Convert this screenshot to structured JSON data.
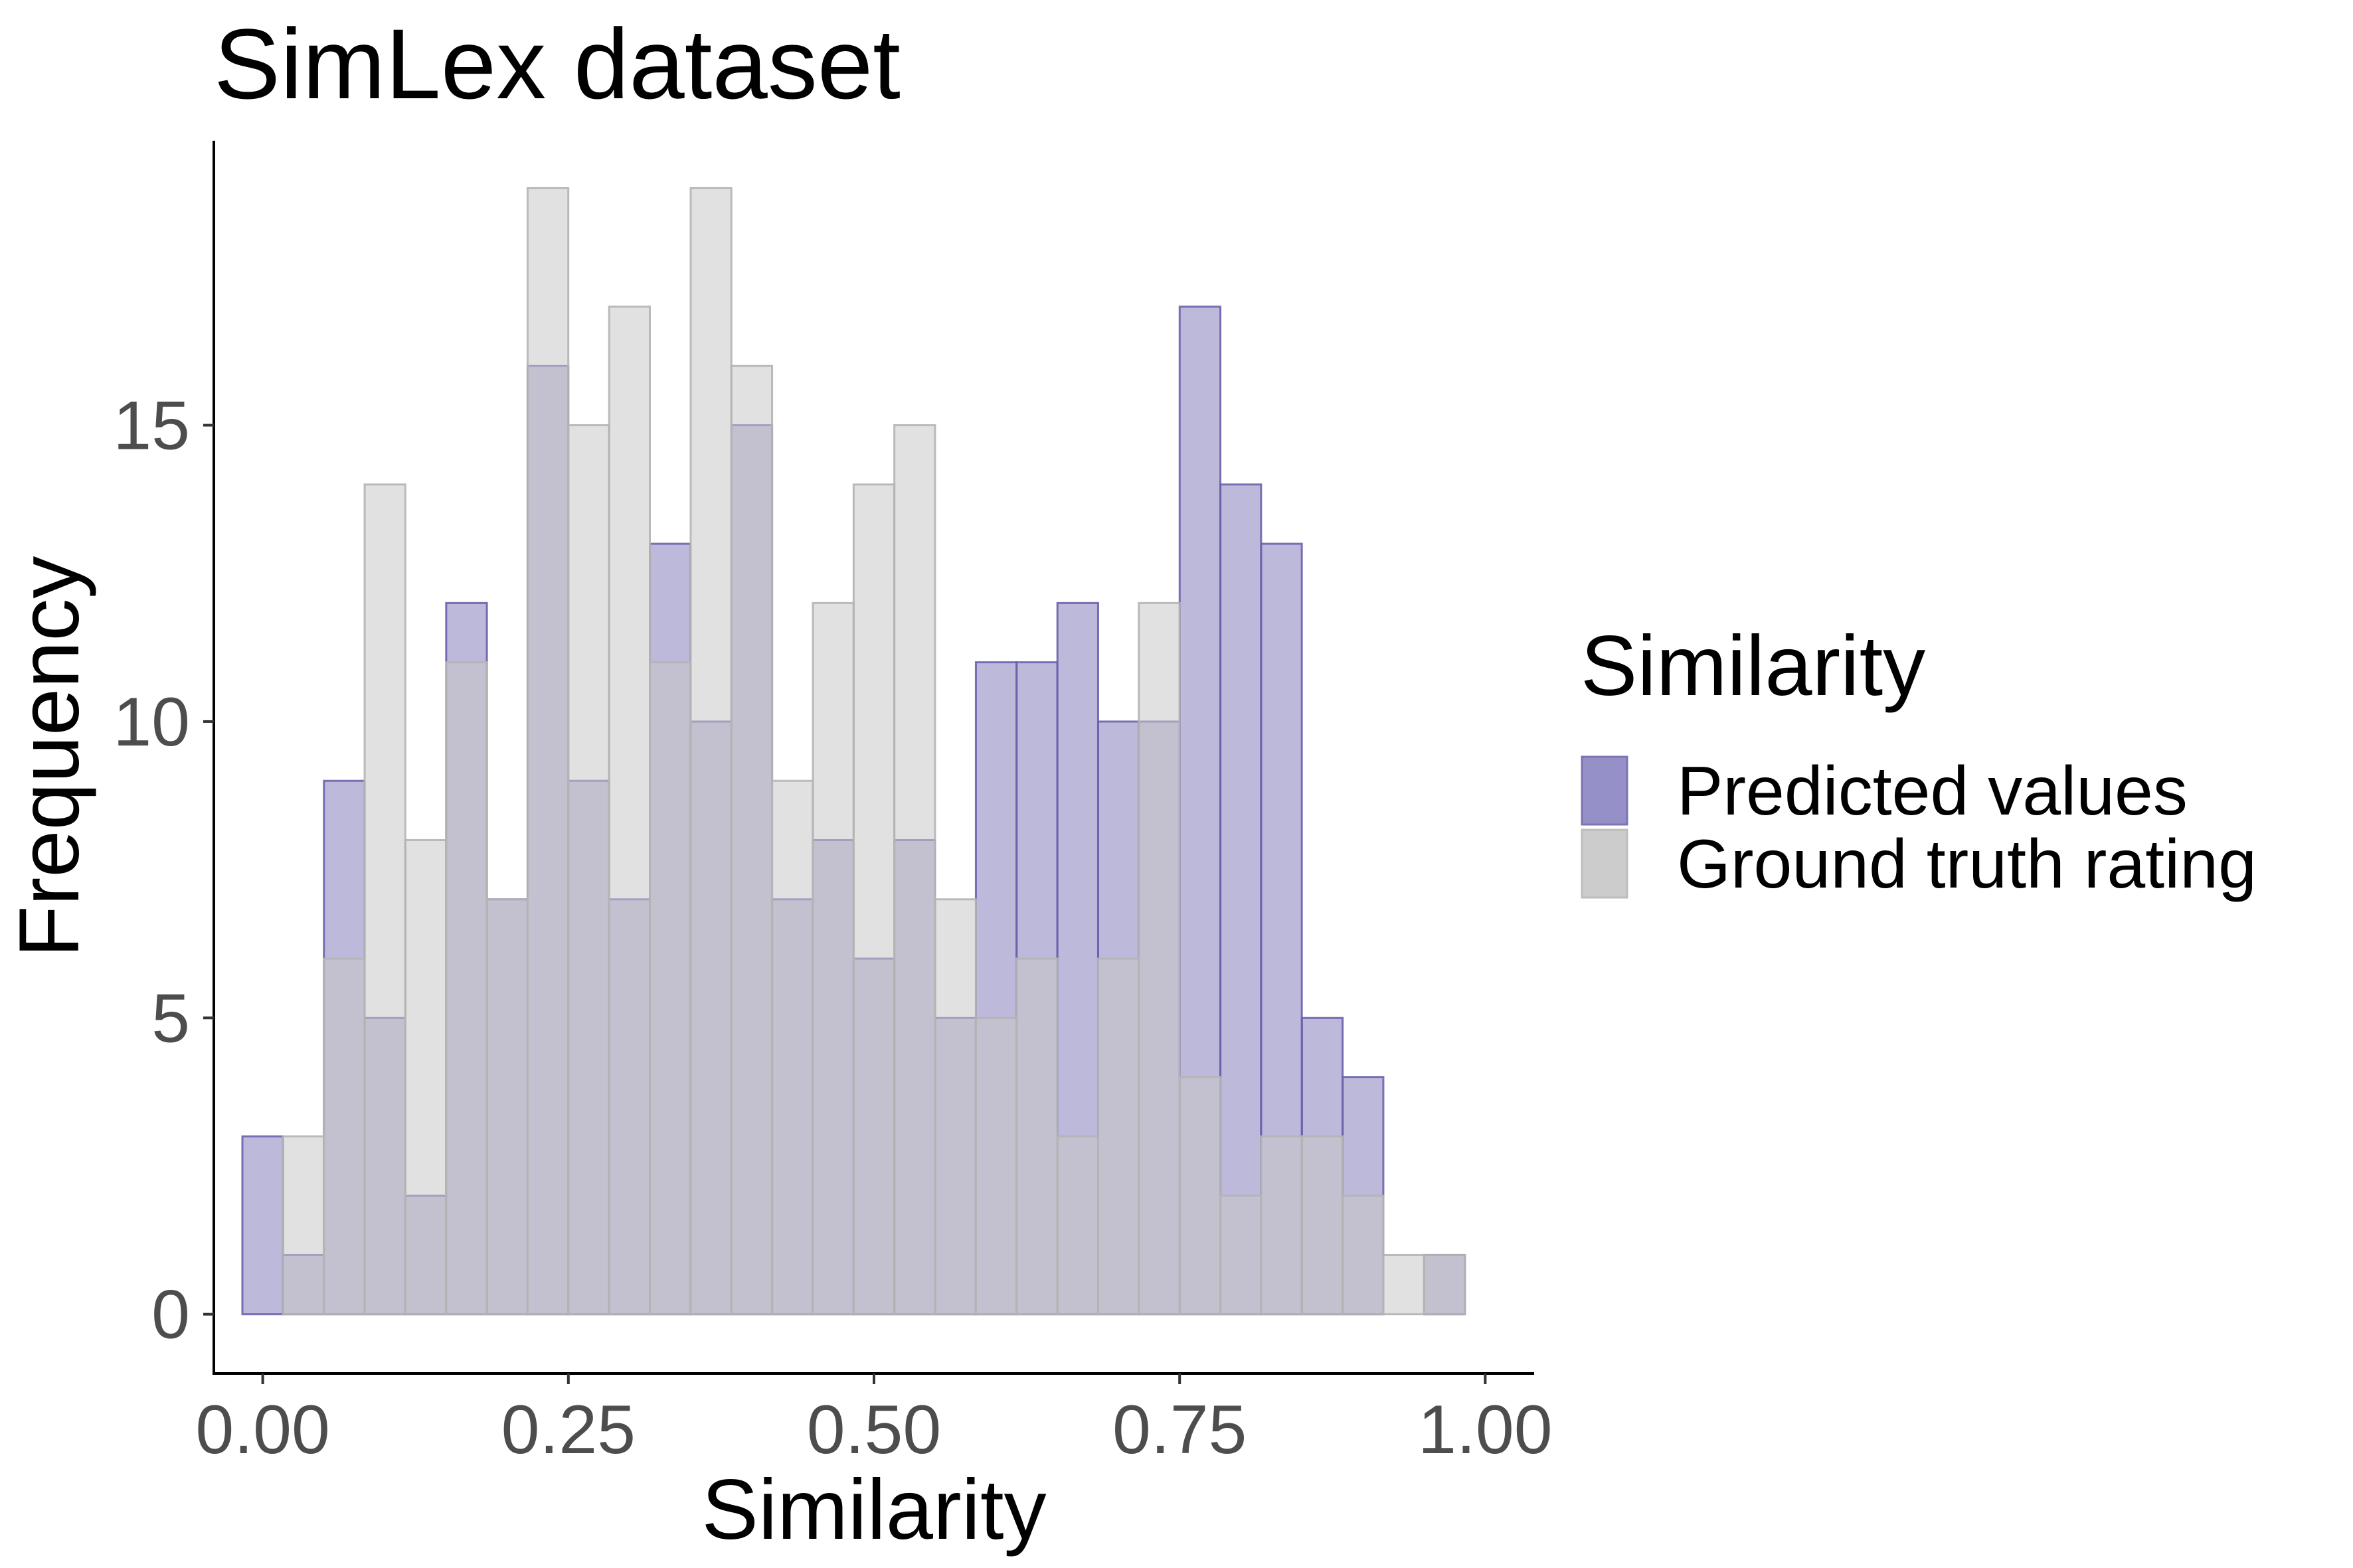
{
  "chart_data": {
    "type": "bar",
    "title": "SimLex dataset",
    "xlabel": "Similarity",
    "ylabel": "Frequency",
    "xlim": [
      -0.04,
      1.04
    ],
    "ylim": [
      -1,
      19.8
    ],
    "x_ticks": [
      0,
      0.25,
      0.5,
      0.75,
      1
    ],
    "x_tick_labels": [
      "0.00",
      "0.25",
      "0.50",
      "0.75",
      "1.00"
    ],
    "y_ticks": [
      0,
      5,
      10,
      15
    ],
    "y_tick_labels": [
      "0",
      "5",
      "10",
      "15"
    ],
    "bin_width": 0.0333,
    "bin_centers": [
      0.0,
      0.0333,
      0.0667,
      0.1,
      0.1333,
      0.1667,
      0.2,
      0.2333,
      0.2667,
      0.3,
      0.3333,
      0.3667,
      0.4,
      0.4333,
      0.4667,
      0.5,
      0.5333,
      0.5667,
      0.6,
      0.6333,
      0.6667,
      0.7,
      0.7333,
      0.7667,
      0.8,
      0.8333,
      0.8667,
      0.9,
      0.9333,
      0.9667
    ],
    "series": [
      {
        "name": "Predicted values",
        "color": "#7b74b5",
        "values": [
          3,
          1,
          9,
          5,
          2,
          12,
          7,
          16,
          9,
          7,
          13,
          10,
          15,
          7,
          8,
          6,
          8,
          5,
          11,
          11,
          12,
          10,
          10,
          17,
          14,
          13,
          5,
          4,
          0,
          1
        ]
      },
      {
        "name": "Ground truth rating",
        "color": "#c8c8c8",
        "values": [
          0,
          3,
          6,
          14,
          8,
          11,
          7,
          19,
          15,
          17,
          11,
          19,
          16,
          9,
          12,
          14,
          15,
          7,
          5,
          6,
          3,
          6,
          12,
          4,
          2,
          3,
          3,
          2,
          1,
          1
        ]
      }
    ],
    "legend": {
      "title": "Similarity",
      "position": "right",
      "labels": [
        "Predicted values",
        "Ground truth rating"
      ]
    },
    "grid": false
  }
}
